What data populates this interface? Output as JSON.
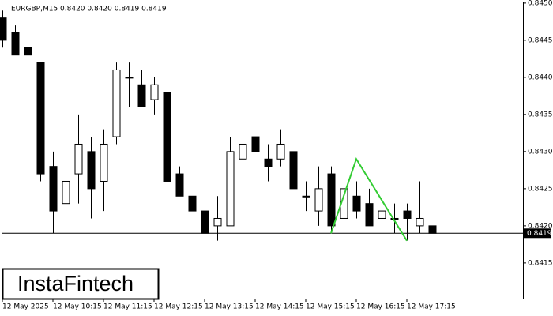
{
  "chart_data": {
    "type": "candlestick",
    "title": "EURGBP,M15  0.8420 0.8420 0.8419 0.8419",
    "logo": "InstaFintech",
    "categories": [
      "12 May 2025",
      null,
      null,
      null,
      "12 May 10:15",
      null,
      null,
      null,
      "12 May 11:15",
      null,
      null,
      null,
      "12 May 12:15",
      null,
      null,
      null,
      "12 May 13:15",
      null,
      null,
      null,
      "12 May 14:15",
      null,
      null,
      null,
      "12 May 15:15",
      null,
      null,
      null,
      "12 May 16:15",
      null,
      null,
      null,
      "12 May 17:15",
      null,
      null
    ],
    "open": [
      0.8448,
      0.8446,
      0.8444,
      0.8442,
      0.8428,
      0.8423,
      0.8427,
      0.843,
      0.8426,
      0.8432,
      0.844,
      0.8439,
      0.8437,
      0.8438,
      0.8427,
      0.8424,
      0.8422,
      0.842,
      0.842,
      0.8429,
      0.8432,
      0.8429,
      0.8429,
      0.843,
      0.8424,
      0.8422,
      0.8427,
      0.8421,
      0.8424,
      0.8423,
      0.8421,
      0.8421,
      0.8422,
      0.842,
      0.842
    ],
    "high": [
      0.8449,
      0.8447,
      0.8445,
      0.8442,
      0.843,
      0.8428,
      0.8435,
      0.8432,
      0.8433,
      0.8442,
      0.8442,
      0.8441,
      0.844,
      0.8438,
      0.8428,
      0.8424,
      0.8422,
      0.8424,
      0.8432,
      0.8433,
      0.8432,
      0.8431,
      0.8433,
      0.843,
      0.8426,
      0.8428,
      0.8428,
      0.8426,
      0.8426,
      0.8425,
      0.8424,
      0.8423,
      0.8423,
      0.8426,
      0.842
    ],
    "low": [
      0.8444,
      0.8443,
      0.8441,
      0.8426,
      0.8419,
      0.8421,
      0.8423,
      0.8421,
      0.8422,
      0.8431,
      0.8436,
      0.8436,
      0.8435,
      0.8425,
      0.8424,
      0.8422,
      0.8414,
      0.8418,
      0.842,
      0.8427,
      0.843,
      0.8426,
      0.8428,
      0.8425,
      0.8422,
      0.842,
      0.8419,
      0.8419,
      0.8421,
      0.842,
      0.8419,
      0.8419,
      0.8418,
      0.8419,
      0.8419
    ],
    "close": [
      0.8445,
      0.8443,
      0.8443,
      0.8427,
      0.8422,
      0.8426,
      0.8431,
      0.8425,
      0.8431,
      0.8441,
      0.844,
      0.8436,
      0.8439,
      0.8426,
      0.8424,
      0.8422,
      0.8419,
      0.8421,
      0.843,
      0.8431,
      0.843,
      0.8428,
      0.8431,
      0.8425,
      0.8424,
      0.8425,
      0.842,
      0.8425,
      0.8422,
      0.842,
      0.8422,
      0.8421,
      0.8421,
      0.8421,
      0.8419
    ],
    "up_color": "#ffffff",
    "down_color": "#000000",
    "pattern": {
      "color": "#33cc33",
      "x": [
        26,
        28,
        32
      ],
      "values": [
        0.8419,
        0.8429,
        0.8418
      ]
    },
    "price_line": 0.8419,
    "ylim": [
      0.84102,
      0.84502
    ],
    "yticks": [
      0.8415,
      {
        "value": 0.842,
        "label": "0.8420"
      },
      0.8425,
      {
        "value": 0.843,
        "label": "0.8430"
      },
      0.8435,
      {
        "value": 0.844,
        "label": "0.8440"
      },
      0.8445,
      {
        "value": 0.845,
        "label": "0.8450"
      }
    ]
  }
}
